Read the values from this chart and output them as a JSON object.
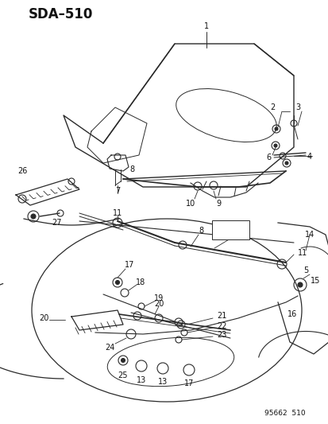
{
  "title": "SDA–510",
  "footer": "95662  510",
  "bg_color": "#ffffff",
  "fig_width": 4.14,
  "fig_height": 5.33,
  "dpi": 100,
  "line_color": "#2a2a2a"
}
